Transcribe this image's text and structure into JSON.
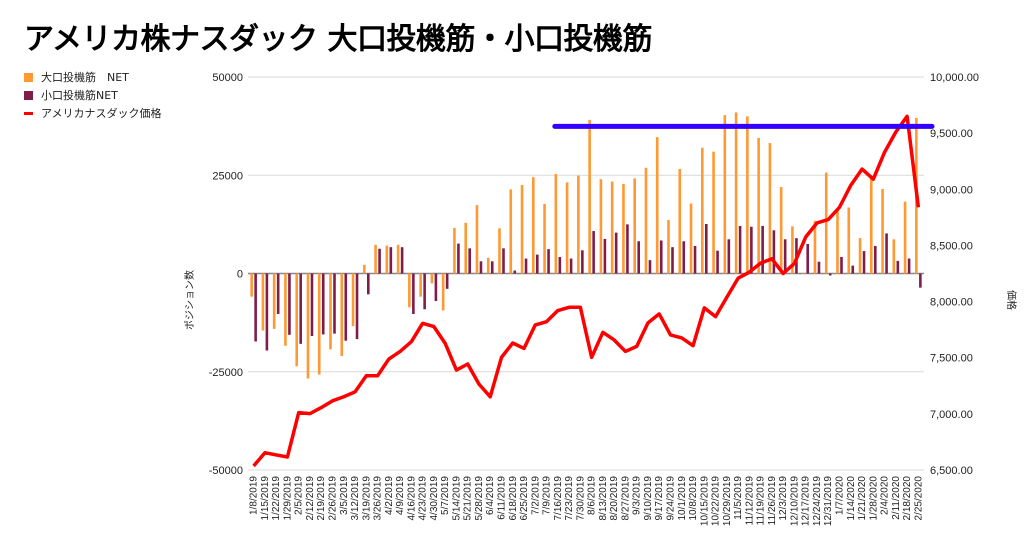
{
  "chart_data": {
    "type": "bar+line",
    "title": "アメリカ株ナスダック 大口投機筋・小口投機筋",
    "ylabel": "ポジション数",
    "y2label": "価格",
    "ylim": [
      -50000,
      50000
    ],
    "y2lim": [
      6500,
      10000
    ],
    "yticks": [
      "50000",
      "25000",
      "0",
      "-25000",
      "-50000"
    ],
    "ytick_values": [
      50000,
      25000,
      0,
      -25000,
      -50000
    ],
    "y2ticks": [
      "10,000.00",
      "9,500.00",
      "9,000.00",
      "8,500.00",
      "8,000.00",
      "7,500.00",
      "7,000.00",
      "6,500.00"
    ],
    "y2tick_values": [
      10000,
      9500,
      9000,
      8500,
      8000,
      7500,
      7000,
      6500
    ],
    "legend_position": "top-left",
    "categories": [
      "1/8/2019",
      "1/15/2019",
      "1/22/2019",
      "1/29/2019",
      "2/5/2019",
      "2/12/2019",
      "2/19/2019",
      "2/26/2019",
      "3/5/2019",
      "3/12/2019",
      "3/19/2019",
      "3/26/2019",
      "4/2/2019",
      "4/9/2019",
      "4/16/2019",
      "4/23/2019",
      "4/30/2019",
      "5/7/2019",
      "5/14/2019",
      "5/21/2019",
      "5/28/2019",
      "6/4/2019",
      "6/11/2019",
      "6/18/2019",
      "6/25/2019",
      "7/2/2019",
      "7/9/2019",
      "7/16/2019",
      "7/23/2019",
      "7/30/2019",
      "8/6/2019",
      "8/13/2019",
      "8/20/2019",
      "8/27/2019",
      "9/3/2019",
      "9/10/2019",
      "9/17/2019",
      "9/24/2019",
      "10/1/2019",
      "10/8/2019",
      "10/15/2019",
      "10/22/2019",
      "10/29/2019",
      "11/5/2019",
      "11/12/2019",
      "11/19/2019",
      "11/26/2019",
      "12/3/2019",
      "12/10/2019",
      "12/17/2019",
      "12/24/2019",
      "12/31/2019",
      "1/7/2020",
      "1/14/2020",
      "1/21/2020",
      "1/28/2020",
      "2/4/2020",
      "2/11/2020",
      "2/18/2020",
      "2/25/2020"
    ],
    "series": [
      {
        "name": "大口投機筋　NET",
        "type": "bar",
        "axis": "left",
        "color": "#ff9933",
        "values": [
          -5900,
          -14500,
          -14100,
          -18400,
          -23600,
          -26700,
          -25700,
          -19300,
          -21000,
          -13400,
          2200,
          7300,
          7100,
          7300,
          -8600,
          -5900,
          -2500,
          -9400,
          11600,
          12900,
          17400,
          4000,
          11500,
          21400,
          22500,
          24500,
          17700,
          25300,
          23200,
          24900,
          39100,
          24000,
          23400,
          22800,
          24200,
          26900,
          34700,
          13600,
          26600,
          17800,
          32000,
          31000,
          40300,
          41000,
          40000,
          34500,
          33200,
          22000,
          12000,
          0,
          13400,
          25700,
          16100,
          16800,
          9000,
          24300,
          21500,
          8700,
          18300,
          39600
        ]
      },
      {
        "name": "小口投機筋NET",
        "type": "bar",
        "axis": "left",
        "color": "#7f1d4a",
        "values": [
          -17300,
          -19600,
          -10300,
          -15600,
          -17900,
          -15900,
          -15500,
          -15300,
          -17100,
          -16700,
          -5300,
          6300,
          6700,
          6700,
          -10300,
          -9100,
          -7000,
          -3900,
          7600,
          6400,
          3100,
          3100,
          6400,
          750,
          3800,
          4800,
          6200,
          4200,
          3800,
          5900,
          10800,
          8800,
          10400,
          12500,
          8200,
          3400,
          8400,
          6700,
          8200,
          7000,
          12600,
          5800,
          8700,
          12100,
          11900,
          12100,
          11000,
          8700,
          9000,
          7500,
          3000,
          -500,
          4200,
          2000,
          5700,
          7000,
          10200,
          3200,
          3800,
          -3600
        ]
      },
      {
        "name": "アメリカナスダック価格",
        "type": "line",
        "axis": "right",
        "color": "#ff0000",
        "values": [
          6536,
          6654,
          6634,
          6616,
          7011,
          7002,
          7056,
          7116,
          7152,
          7196,
          7339,
          7339,
          7488,
          7556,
          7643,
          7806,
          7777,
          7628,
          7390,
          7444,
          7265,
          7152,
          7503,
          7631,
          7583,
          7792,
          7821,
          7920,
          7949,
          7949,
          7503,
          7726,
          7658,
          7556,
          7601,
          7810,
          7890,
          7703,
          7676,
          7607,
          7944,
          7866,
          8038,
          8208,
          8262,
          8342,
          8381,
          8250,
          8340,
          8575,
          8700,
          8730,
          8840,
          9035,
          9180,
          9090,
          9330,
          9510,
          9650,
          8840
        ]
      }
    ],
    "annotations": [
      {
        "type": "hline",
        "axis": "right",
        "value": 9560,
        "from_category": "7/16/2019",
        "to": "end",
        "color": "#3300ff"
      }
    ]
  }
}
